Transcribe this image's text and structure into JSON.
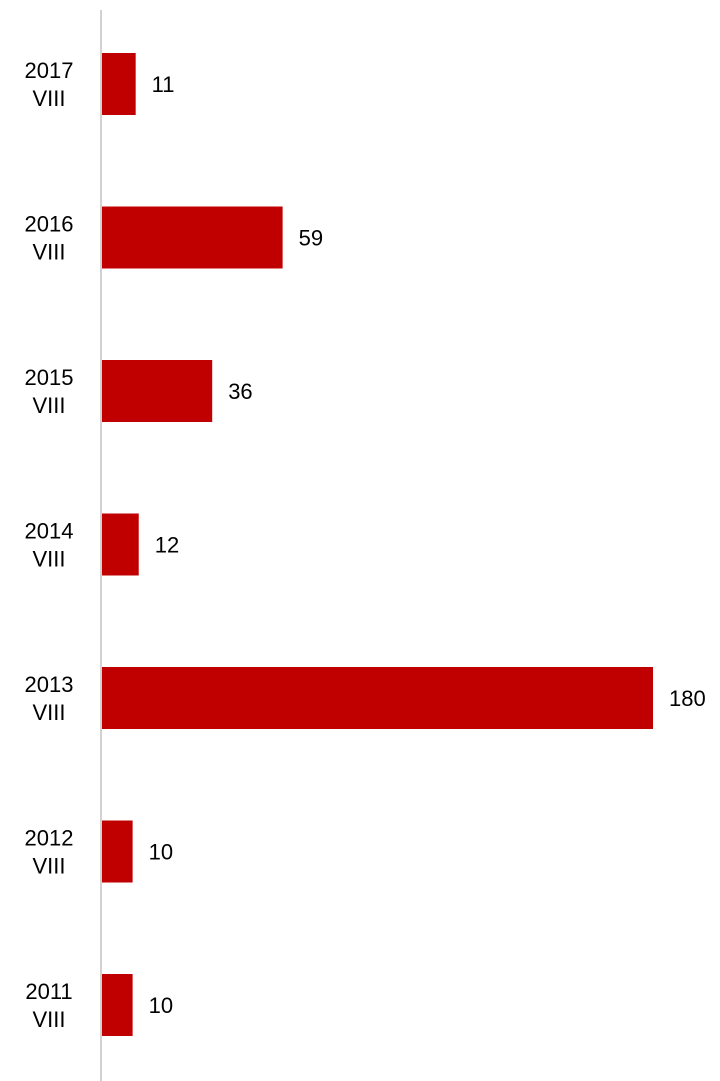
{
  "chart_data": {
    "type": "bar",
    "orientation": "horizontal",
    "categories": [
      [
        "2017",
        "VIII"
      ],
      [
        "2016",
        "VIII"
      ],
      [
        "2015",
        "VIII"
      ],
      [
        "2014",
        "VIII"
      ],
      [
        "2013",
        "VIII"
      ],
      [
        "2012",
        "VIII"
      ],
      [
        "2011",
        "VIII"
      ]
    ],
    "values": [
      11,
      59,
      36,
      12,
      180,
      10,
      10
    ],
    "data_labels": [
      "11",
      "59",
      "36",
      "12",
      "180",
      "10",
      "10"
    ],
    "title": "",
    "xlabel": "",
    "ylabel": "",
    "xlim": [
      0,
      180
    ],
    "grid": false,
    "legend": "none",
    "bar_color": "#c00000",
    "axis_color": "#a6a6a6"
  }
}
